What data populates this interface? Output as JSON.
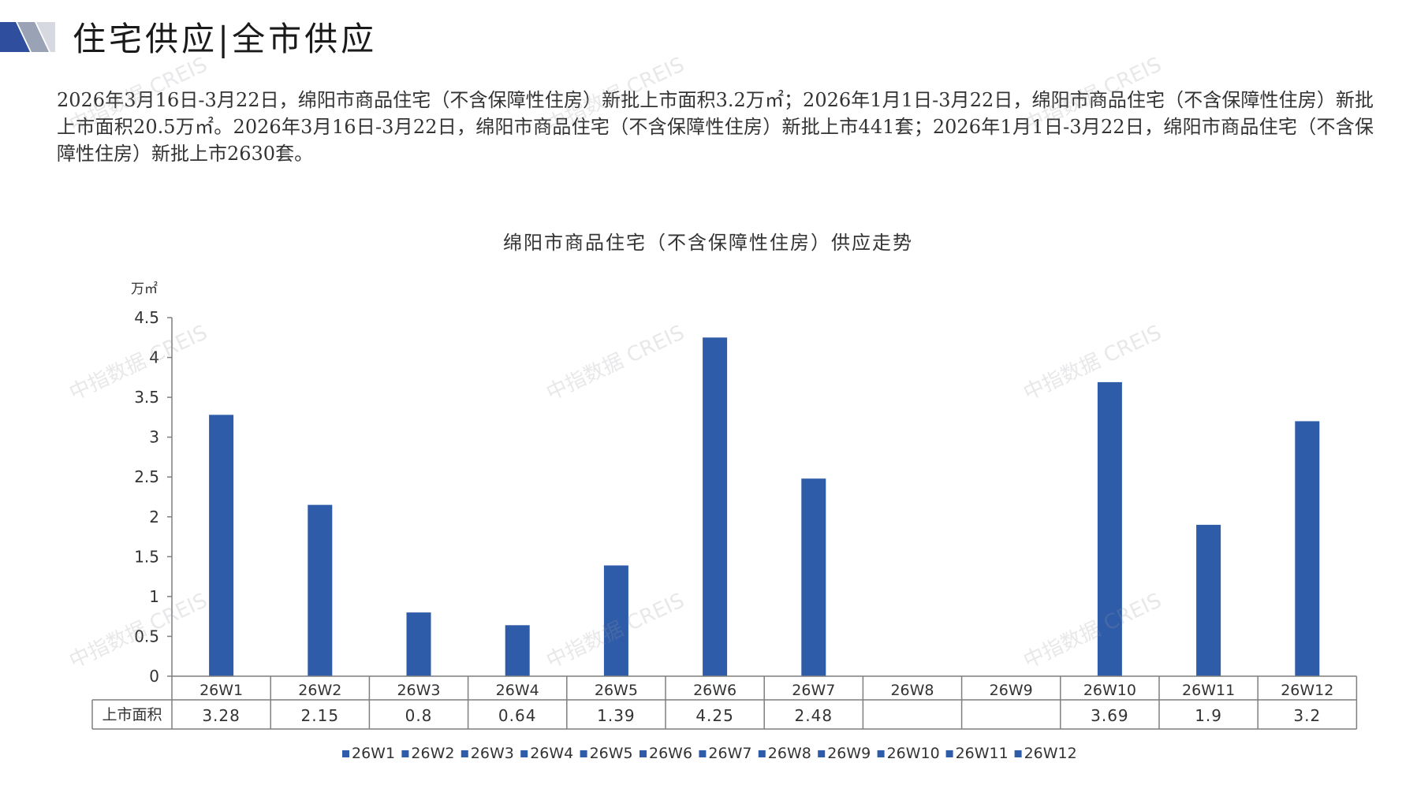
{
  "page": {
    "title": "住宅供应|全市供应",
    "summary": "2026年3月16日-3月22日，绵阳市商品住宅（不含保障性住房）新批上市面积3.2万㎡；2026年1月1日-3月22日，绵阳市商品住宅（不含保障性住房）新批上市面积20.5万㎡。2026年3月16日-3月22日，绵阳市商品住宅（不含保障性住房）新批上市441套；2026年1月1日-3月22日，绵阳市商品住宅（不含保障性住房）新批上市2630套。",
    "watermark": "中指数据 CREIS"
  },
  "chart_data": {
    "type": "bar",
    "title": "绵阳市商品住宅（不含保障性住房）供应走势",
    "ylabel": "万㎡",
    "ylim": [
      0,
      4.5
    ],
    "yticks": [
      "0",
      "0.5",
      "1",
      "1.5",
      "2",
      "2.5",
      "3",
      "3.5",
      "4",
      "4.5"
    ],
    "categories": [
      "26W1",
      "26W2",
      "26W3",
      "26W4",
      "26W5",
      "26W6",
      "26W7",
      "26W8",
      "26W9",
      "26W10",
      "26W11",
      "26W12"
    ],
    "series": [
      {
        "name": "上市面积",
        "values": [
          3.28,
          2.15,
          0.8,
          0.64,
          1.39,
          4.25,
          2.48,
          null,
          null,
          3.69,
          1.9,
          3.2
        ],
        "labels": [
          "3.28",
          "2.15",
          "0.8",
          "0.64",
          "1.39",
          "4.25",
          "2.48",
          "",
          "",
          "3.69",
          "1.9",
          "3.2"
        ]
      }
    ],
    "legend": [
      "26W1",
      "26W2",
      "26W3",
      "26W4",
      "26W5",
      "26W6",
      "26W7",
      "26W8",
      "26W9",
      "26W10",
      "26W11",
      "26W12"
    ],
    "legend_position": "bottom",
    "data_table": true,
    "grid": false,
    "colors": {
      "bar": "#2f5ca8",
      "axis": "#7f7f7f",
      "text": "#333333"
    }
  }
}
